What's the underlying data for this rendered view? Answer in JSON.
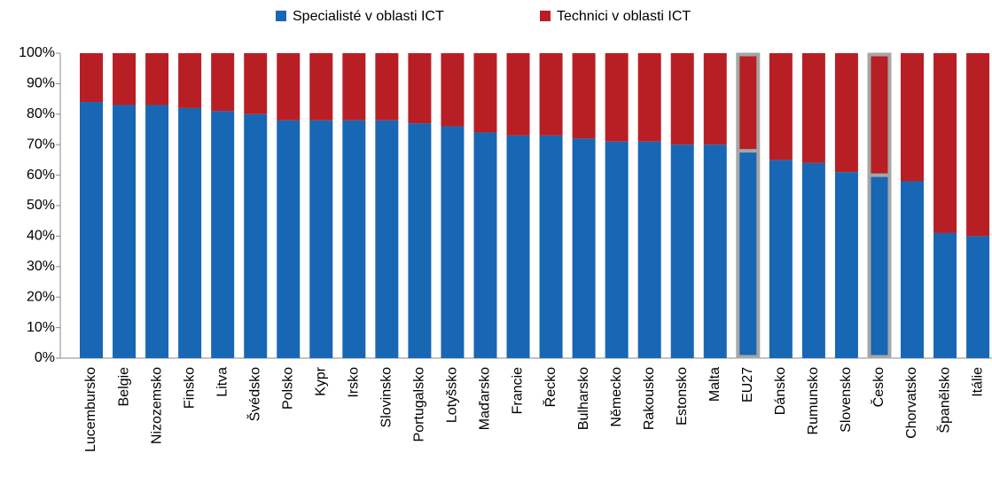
{
  "chart_data": {
    "type": "stacked_bar",
    "categories": [
      "Lucembursko",
      "Belgie",
      "Nizozemsko",
      "Finsko",
      "Litva",
      "Švédsko",
      "Polsko",
      "Kypr",
      "Irsko",
      "Slovinsko",
      "Portugalsko",
      "Lotyšsko",
      "Maďarsko",
      "Francie",
      "Řecko",
      "Bulharsko",
      "Německo",
      "Rakousko",
      "Estonsko",
      "Malta",
      "EU27",
      "Dánsko",
      "Rumunsko",
      "Slovensko",
      "Česko",
      "Chorvatsko",
      "Španělsko",
      "Itálie"
    ],
    "series": [
      {
        "name": "Specialisté v oblasti ICT",
        "color": "#1767b4",
        "values": [
          84,
          83,
          83,
          82,
          81,
          80,
          78,
          78,
          78,
          78,
          77,
          76,
          74,
          73,
          73,
          72,
          71,
          71,
          70,
          70,
          68,
          65,
          64,
          61,
          60,
          58,
          41,
          40
        ]
      },
      {
        "name": "Technici v oblasti ICT",
        "color": "#b81f25",
        "values": [
          16,
          17,
          17,
          18,
          19,
          20,
          22,
          22,
          22,
          22,
          23,
          24,
          26,
          27,
          27,
          28,
          29,
          29,
          30,
          30,
          32,
          35,
          36,
          39,
          40,
          42,
          59,
          60
        ]
      }
    ],
    "ylim": [
      0,
      100
    ],
    "yticks": [
      {
        "value": 0,
        "label": "0%"
      },
      {
        "value": 10,
        "label": "10%"
      },
      {
        "value": 20,
        "label": "20%"
      },
      {
        "value": 30,
        "label": "30%"
      },
      {
        "value": 40,
        "label": "40%"
      },
      {
        "value": 50,
        "label": "50%"
      },
      {
        "value": 60,
        "label": "60%"
      },
      {
        "value": 70,
        "label": "70%"
      },
      {
        "value": 80,
        "label": "80%"
      },
      {
        "value": 90,
        "label": "90%"
      },
      {
        "value": 100,
        "label": "100%"
      }
    ],
    "legend": "top",
    "highlight": [
      20,
      24
    ]
  }
}
